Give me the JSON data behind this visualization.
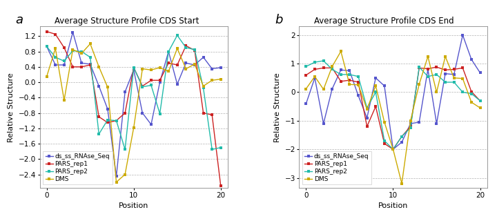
{
  "title_a": "Average Structure Profile CDS Start",
  "title_b": "Average Structure Profile CDS End",
  "label_a": "a",
  "label_b": "b",
  "xlabel": "Position",
  "ylabel": "Relative Structure",
  "legend_labels": [
    "ds_ss_RNAse_Seq",
    "PARS_rep1",
    "PARS_rep2",
    "DMS"
  ],
  "colors": [
    "#5555cc",
    "#cc2222",
    "#22bbaa",
    "#ccaa00"
  ],
  "x": [
    0,
    1,
    2,
    3,
    4,
    5,
    6,
    7,
    8,
    9,
    10,
    11,
    12,
    13,
    14,
    15,
    16,
    17,
    18,
    19,
    20
  ],
  "a_ds_ss": [
    0.93,
    0.45,
    0.45,
    1.3,
    0.5,
    0.47,
    -0.1,
    -0.7,
    -2.45,
    -0.25,
    0.32,
    -0.8,
    -1.1,
    0.0,
    0.8,
    -0.05,
    0.5,
    0.45,
    0.65,
    0.35,
    0.38
  ],
  "a_pars1": [
    1.32,
    1.25,
    0.9,
    0.4,
    0.4,
    0.45,
    -0.9,
    -1.05,
    -1.0,
    -0.8,
    0.38,
    -0.1,
    0.05,
    0.05,
    0.5,
    0.45,
    0.95,
    0.83,
    -0.8,
    -0.85,
    -2.7
  ],
  "a_pars2": [
    0.93,
    0.65,
    0.55,
    0.82,
    0.8,
    0.65,
    -1.35,
    -0.98,
    -1.0,
    -1.75,
    0.38,
    -0.12,
    -0.08,
    -0.82,
    0.8,
    1.22,
    0.9,
    0.85,
    -0.15,
    -1.75,
    -1.7
  ],
  "a_dms": [
    0.15,
    0.88,
    -0.47,
    0.85,
    0.75,
    1.0,
    0.4,
    -0.13,
    -2.6,
    -2.4,
    -1.18,
    0.35,
    0.32,
    0.38,
    0.28,
    0.88,
    0.35,
    0.47,
    -0.1,
    0.05,
    0.08
  ],
  "b_ds_ss": [
    -0.4,
    0.5,
    -1.1,
    0.12,
    0.78,
    0.75,
    -0.12,
    -0.9,
    0.5,
    0.22,
    -2.0,
    -1.75,
    -1.1,
    -1.05,
    0.8,
    -1.1,
    0.65,
    0.62,
    2.0,
    1.15,
    0.68
  ],
  "b_pars1": [
    0.6,
    0.8,
    0.85,
    0.85,
    0.38,
    0.42,
    0.35,
    -1.2,
    -0.5,
    -1.8,
    -2.0,
    -1.55,
    -1.2,
    0.85,
    0.82,
    0.88,
    0.78,
    0.8,
    0.85,
    0.02,
    -0.3
  ],
  "b_pars2": [
    0.9,
    1.05,
    1.1,
    0.8,
    0.62,
    0.62,
    0.55,
    -0.55,
    0.0,
    -1.7,
    -2.0,
    -1.55,
    -1.25,
    0.88,
    0.55,
    0.62,
    0.35,
    0.35,
    0.0,
    -0.05,
    -0.3
  ],
  "b_dms": [
    0.12,
    0.55,
    0.1,
    0.9,
    1.43,
    0.27,
    0.26,
    -0.6,
    0.23,
    -1.05,
    -2.0,
    -3.2,
    -1.0,
    0.28,
    1.25,
    0.0,
    1.25,
    0.5,
    0.48,
    -0.35,
    -0.55
  ],
  "ylim_a": [
    -2.75,
    1.45
  ],
  "ylim_b": [
    -3.35,
    2.3
  ],
  "yticks_a": [
    -2.4,
    -2.0,
    -1.6,
    -1.2,
    -0.8,
    -0.4,
    0.0,
    0.4,
    0.8,
    1.2
  ],
  "yticks_b": [
    -3.0,
    -2.0,
    -1.0,
    0.0,
    1.0,
    2.0
  ],
  "xticks": [
    0,
    10,
    20
  ],
  "bg_color": "#ffffff",
  "marker": "s",
  "markersize": 2.8,
  "linewidth": 1.0
}
